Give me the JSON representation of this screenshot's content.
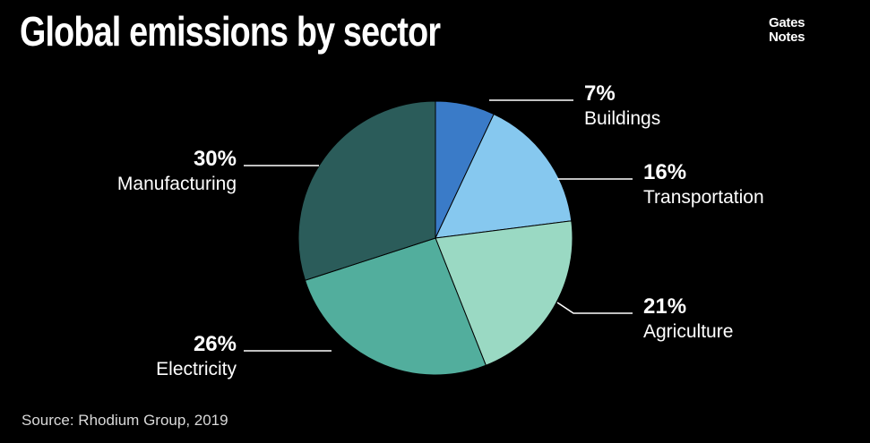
{
  "header": {
    "title": "Global emissions by sector",
    "logo_line1": "Gates",
    "logo_line2": "Notes"
  },
  "footer": {
    "source": "Source: Rhodium Group, 2019"
  },
  "chart_data": {
    "type": "pie",
    "title": "Global emissions by sector",
    "slices": [
      {
        "label": "Buildings",
        "value": 7,
        "value_label": "7%",
        "color": "#3a7bc8"
      },
      {
        "label": "Transportation",
        "value": 16,
        "value_label": "16%",
        "color": "#86c8ef"
      },
      {
        "label": "Agriculture",
        "value": 21,
        "value_label": "21%",
        "color": "#9ad9c3"
      },
      {
        "label": "Electricity",
        "value": 26,
        "value_label": "26%",
        "color": "#52ae9d"
      },
      {
        "label": "Manufacturing",
        "value": 30,
        "value_label": "30%",
        "color": "#2b5c5a"
      }
    ],
    "legend": "none"
  }
}
